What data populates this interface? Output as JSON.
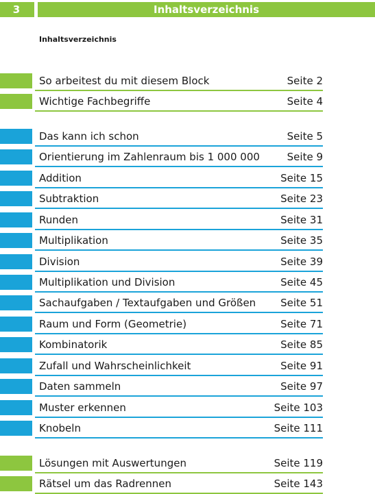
{
  "header": {
    "page_number": "3",
    "title": "Inhaltsverzeichnis"
  },
  "subtitle": "Inhaltsverzeichnis",
  "colors": {
    "green": "#8dc63f",
    "blue": "#1aa3d9"
  },
  "toc": [
    {
      "label": "So arbeitest du mit diesem Block",
      "page": "Seite 2",
      "color": "green"
    },
    {
      "label": "Wichtige Fachbegriffe",
      "page": "Seite 4",
      "color": "green"
    },
    {
      "label": "Das kann ich schon",
      "page": "Seite 5",
      "color": "blue"
    },
    {
      "label": "Orientierung im Zahlenraum bis 1 000 000",
      "page": "Seite 9",
      "color": "blue"
    },
    {
      "label": "Addition",
      "page": "Seite 15",
      "color": "blue"
    },
    {
      "label": "Subtraktion",
      "page": "Seite 23",
      "color": "blue"
    },
    {
      "label": "Runden",
      "page": "Seite 31",
      "color": "blue"
    },
    {
      "label": "Multiplikation",
      "page": "Seite 35",
      "color": "blue"
    },
    {
      "label": "Division",
      "page": "Seite 39",
      "color": "blue"
    },
    {
      "label": "Multiplikation und Division",
      "page": "Seite 45",
      "color": "blue"
    },
    {
      "label": "Sachaufgaben / Textaufgaben und Größen",
      "page": "Seite 51",
      "color": "blue"
    },
    {
      "label": "Raum und Form (Geometrie)",
      "page": "Seite 71",
      "color": "blue"
    },
    {
      "label": "Kombinatorik",
      "page": "Seite 85",
      "color": "blue"
    },
    {
      "label": "Zufall und Wahrscheinlichkeit",
      "page": "Seite 91",
      "color": "blue"
    },
    {
      "label": "Daten sammeln",
      "page": "Seite 97",
      "color": "blue"
    },
    {
      "label": "Muster erkennen",
      "page": "Seite 103",
      "color": "blue"
    },
    {
      "label": "Knobeln",
      "page": "Seite 111",
      "color": "blue"
    },
    {
      "label": "Lösungen mit Auswertungen",
      "page": "Seite 119",
      "color": "green"
    },
    {
      "label": "Rätsel um das Radrennen",
      "page": "Seite 143",
      "color": "green"
    }
  ]
}
